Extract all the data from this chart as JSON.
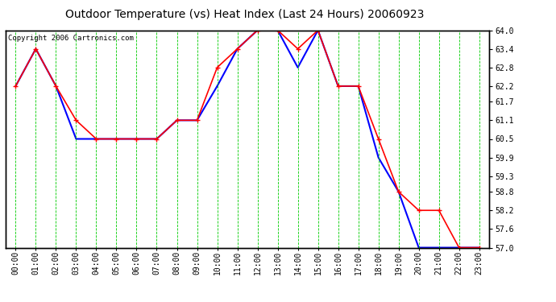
{
  "title": "Outdoor Temperature (vs) Heat Index (Last 24 Hours) 20060923",
  "copyright": "Copyright 2006 Cartronics.com",
  "hours": [
    "00:00",
    "01:00",
    "02:00",
    "03:00",
    "04:00",
    "05:00",
    "06:00",
    "07:00",
    "08:00",
    "09:00",
    "10:00",
    "11:00",
    "12:00",
    "13:00",
    "14:00",
    "15:00",
    "16:00",
    "17:00",
    "18:00",
    "19:00",
    "20:00",
    "21:00",
    "22:00",
    "23:00"
  ],
  "temp": [
    62.2,
    63.4,
    62.2,
    61.1,
    60.5,
    60.5,
    60.5,
    60.5,
    61.1,
    61.1,
    62.8,
    63.4,
    64.0,
    64.0,
    63.4,
    64.0,
    62.2,
    62.2,
    60.5,
    58.8,
    58.2,
    58.2,
    57.0,
    57.0
  ],
  "heat_index": [
    62.2,
    63.4,
    62.2,
    60.5,
    60.5,
    60.5,
    60.5,
    60.5,
    61.1,
    61.1,
    62.2,
    63.4,
    64.0,
    64.0,
    62.8,
    64.0,
    62.2,
    62.2,
    59.9,
    58.8,
    57.0,
    57.0,
    57.0,
    57.0
  ],
  "ylim": [
    57.0,
    64.0
  ],
  "yticks": [
    57.0,
    57.6,
    58.2,
    58.8,
    59.3,
    59.9,
    60.5,
    61.1,
    61.7,
    62.2,
    62.8,
    63.4,
    64.0
  ],
  "temp_color": "#ff0000",
  "heat_color": "#0000ff",
  "grid_color": "#00cc00",
  "bg_color": "#ffffff",
  "border_color": "#000000",
  "title_fontsize": 10,
  "copyright_fontsize": 6.5,
  "tick_fontsize": 7
}
